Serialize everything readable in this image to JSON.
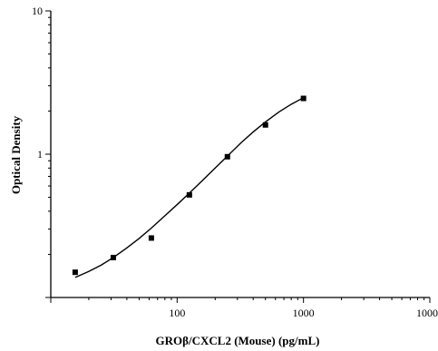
{
  "chart_data": {
    "type": "scatter",
    "title": "",
    "xlabel": "GROβ/CXCL2 (Mouse) (pg/mL)",
    "ylabel": "Optical Density",
    "x_scale": "log",
    "y_scale": "log",
    "xlim": [
      10,
      10000
    ],
    "ylim": [
      0.1,
      10
    ],
    "x_ticks": [
      "100",
      "1000",
      "10000"
    ],
    "y_ticks": [
      "10",
      "1"
    ],
    "grid": false,
    "legend": "none",
    "series": [
      {
        "marker": "square",
        "color": "#000000",
        "x": [
          15.6,
          31.25,
          62.5,
          125,
          250,
          500,
          1000
        ],
        "y": [
          0.15,
          0.19,
          0.26,
          0.52,
          0.96,
          1.6,
          2.45
        ]
      }
    ],
    "fit_curve": {
      "type": "line",
      "color": "#000000",
      "x": [
        15.6,
        20,
        25,
        31.25,
        40,
        50,
        62.5,
        80,
        100,
        125,
        160,
        200,
        250,
        320,
        400,
        500,
        640,
        800,
        1000
      ],
      "y": [
        0.138,
        0.152,
        0.168,
        0.19,
        0.222,
        0.258,
        0.305,
        0.372,
        0.445,
        0.535,
        0.66,
        0.8,
        0.97,
        1.2,
        1.43,
        1.68,
        1.97,
        2.23,
        2.48
      ]
    }
  }
}
